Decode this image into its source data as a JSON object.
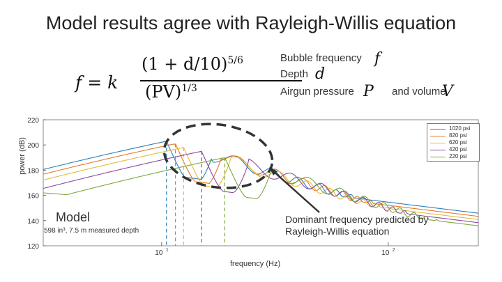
{
  "title": "Model results agree with Rayleigh-Willis equation",
  "formula": {
    "lhs": "f = k",
    "numerator": "(1 + d/10)",
    "numerator_exp": "5/6",
    "denominator": "(PV)",
    "denominator_exp": "1/3"
  },
  "legend_text": {
    "bubble": "Bubble frequency",
    "bubble_sym": "f",
    "depth": "Depth",
    "depth_sym": "d",
    "pressure": "Airgun pressure",
    "pressure_sym": "P",
    "and_volume": "and volume",
    "volume_sym": "V"
  },
  "model_label": "Model",
  "model_sub": "598 in³, 7.5 m measured depth",
  "annotation": "Dominant frequency predicted by Rayleigh-Willis equation",
  "chart_data": {
    "type": "line",
    "xlabel": "frequency (Hz)",
    "ylabel": "power (dB)",
    "xscale": "log",
    "xlim": [
      3,
      250
    ],
    "ylim": [
      120,
      220
    ],
    "yticks": [
      120,
      140,
      160,
      180,
      200,
      220
    ],
    "xticks": [
      {
        "value": 10,
        "base": "10",
        "exp": "1"
      },
      {
        "value": 100,
        "base": "10",
        "exp": "2"
      }
    ],
    "grid": false,
    "legend_position": "top-right",
    "series": [
      {
        "name": "1020 psi",
        "color": "#2a7fb8",
        "peak_freq": 10.5,
        "peak_db": 203
      },
      {
        "name": "820 psi",
        "color": "#e07a2a",
        "peak_freq": 11.5,
        "peak_db": 201
      },
      {
        "name": "620 psi",
        "color": "#e6b93a",
        "peak_freq": 12.5,
        "peak_db": 198
      },
      {
        "name": "420 psi",
        "color": "#8a4aa0",
        "peak_freq": 15,
        "peak_db": 195
      },
      {
        "name": "220 psi",
        "color": "#7aa83a",
        "peak_freq": 19,
        "peak_db": 190
      }
    ]
  },
  "colors": {
    "ellipse": "#333333",
    "arrow": "#333333"
  }
}
